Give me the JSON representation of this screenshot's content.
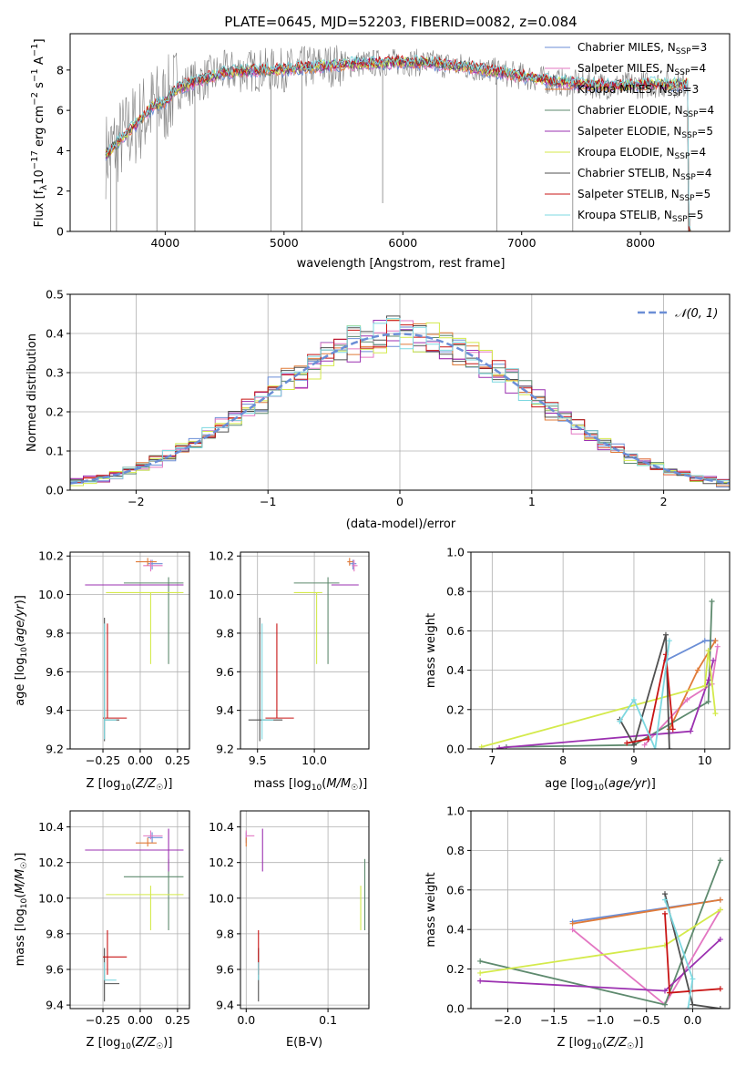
{
  "figure_title": "PLATE=0645, MJD=52203, FIBERID=0082, z=0.084",
  "colors": {
    "chabrier_miles": "#6b8ed6",
    "salpeter_miles": "#e377c2",
    "kroupa_miles": "#e07b39",
    "chabrier_elodie": "#5e8a6e",
    "salpeter_elodie": "#9b30b0",
    "kroupa_elodie": "#d4ea4b",
    "chabrier_stelib": "#505050",
    "salpeter_stelib": "#c81414",
    "kroupa_stelib": "#7dd8e0",
    "data": "#808080",
    "normal": "#6b8ed6"
  },
  "chart_data": [
    {
      "id": "spectrum",
      "type": "line",
      "xlabel": "wavelength [Angstrom, rest frame]",
      "ylabel": "Flux [f_λ 10^-17 erg cm^-2 s^-1 A^-1]",
      "xlim": [
        3200,
        8750
      ],
      "ylim": [
        0,
        9.8
      ],
      "xticks": [
        4000,
        5000,
        6000,
        7000,
        8000
      ],
      "yticks": [
        0,
        2,
        4,
        6,
        8
      ],
      "grid": false,
      "legend_position": "right",
      "legend": [
        {
          "label": "Chabrier MILES, N",
          "sub": "SSP",
          "suffix": "=3"
        },
        {
          "label": "Salpeter MILES, N",
          "sub": "SSP",
          "suffix": "=4"
        },
        {
          "label": "Kroupa MILES, N",
          "sub": "SSP",
          "suffix": "=3"
        },
        {
          "label": "Chabrier ELODIE, N",
          "sub": "SSP",
          "suffix": "=4"
        },
        {
          "label": "Salpeter ELODIE, N",
          "sub": "SSP",
          "suffix": "=5"
        },
        {
          "label": "Kroupa ELODIE, N",
          "sub": "SSP",
          "suffix": "=4"
        },
        {
          "label": "Chabrier STELIB, N",
          "sub": "SSP",
          "suffix": "=4"
        },
        {
          "label": "Salpeter STELIB, N",
          "sub": "SSP",
          "suffix": "=5"
        },
        {
          "label": "Kroupa STELIB, N",
          "sub": "SSP",
          "suffix": "=5"
        }
      ],
      "continuum": {
        "x": [
          3500,
          3600,
          3700,
          3800,
          3900,
          4000,
          4100,
          4300,
          4500,
          4800,
          5000,
          5300,
          5600,
          6000,
          6300,
          6600,
          6900,
          7100,
          7300,
          7500,
          7800,
          8100,
          8400
        ],
        "y": [
          3.8,
          4.4,
          5.0,
          5.6,
          6.2,
          6.4,
          7.1,
          7.5,
          7.9,
          8.0,
          8.0,
          8.2,
          8.3,
          8.4,
          8.3,
          8.1,
          7.8,
          7.6,
          7.4,
          7.3,
          7.2,
          7.3,
          7.3
        ]
      },
      "drops": [
        {
          "x": 3540,
          "to": 0
        },
        {
          "x": 3590,
          "to": 0
        },
        {
          "x": 3930,
          "to": 0
        },
        {
          "x": 4250,
          "to": 0
        },
        {
          "x": 4890,
          "to": 0
        },
        {
          "x": 5150,
          "to": 0
        },
        {
          "x": 5830,
          "to": 1.4
        },
        {
          "x": 6790,
          "to": 0
        },
        {
          "x": 7430,
          "to": 0
        }
      ]
    },
    {
      "id": "residuals",
      "type": "histogram",
      "xlabel": "(data-model)/error",
      "ylabel": "Normed distribution",
      "xlim": [
        -2.5,
        2.5
      ],
      "ylim": [
        0,
        0.5
      ],
      "xticks": [
        -2,
        -1,
        0,
        1,
        2
      ],
      "yticks": [
        0.0,
        0.1,
        0.2,
        0.3,
        0.4,
        0.5
      ],
      "grid": true,
      "legend_position": "top-right",
      "normal_label": "𝒩(0, 1)",
      "bin_width": 0.1,
      "bin_start": -2.5
    },
    {
      "id": "age-vs-z",
      "type": "scatter",
      "xlabel": "Z [log10(Z/Z☉)]",
      "ylabel": "age [log10(age/yr)]",
      "xlim": [
        -0.47,
        0.33
      ],
      "ylim": [
        9.2,
        10.22
      ],
      "xticks": [
        -0.25,
        0.0,
        0.25
      ],
      "xtick_labels": [
        "−0.25",
        "0.00",
        "0.25"
      ],
      "yticks": [
        9.2,
        9.4,
        9.6,
        9.8,
        10.0,
        10.2
      ],
      "grid": true
    },
    {
      "id": "age-vs-mass",
      "type": "scatter",
      "xlabel": "mass [log10(M/M☉)]",
      "ylabel": "",
      "xlim": [
        9.35,
        10.48
      ],
      "ylim": [
        9.2,
        10.22
      ],
      "xticks": [
        9.5,
        10.0
      ],
      "xtick_labels": [
        "9.5",
        "10.0"
      ],
      "yticks": [
        9.2,
        9.4,
        9.6,
        9.8,
        10.0,
        10.2
      ],
      "grid": true
    },
    {
      "id": "weight-vs-age",
      "type": "line",
      "xlabel": "age [log10(age/yr)]",
      "ylabel": "mass weight",
      "xlim": [
        6.7,
        10.35
      ],
      "ylim": [
        0,
        1.0
      ],
      "xticks": [
        7,
        8,
        9,
        10
      ],
      "yticks": [
        0.0,
        0.2,
        0.4,
        0.6,
        0.8,
        1.0
      ],
      "grid": true
    },
    {
      "id": "mass-vs-z",
      "type": "scatter",
      "xlabel": "Z [log10(Z/Z☉)]",
      "ylabel": "mass [log10(M/M☉)]",
      "xlim": [
        -0.47,
        0.33
      ],
      "ylim": [
        9.38,
        10.49
      ],
      "xticks": [
        -0.25,
        0.0,
        0.25
      ],
      "xtick_labels": [
        "−0.25",
        "0.00",
        "0.25"
      ],
      "yticks": [
        9.4,
        9.6,
        9.8,
        10.0,
        10.2,
        10.4
      ],
      "grid": true
    },
    {
      "id": "mass-vs-ebv",
      "type": "scatter",
      "xlabel": "E(B-V)",
      "ylabel": "",
      "xlim": [
        -0.007,
        0.15
      ],
      "ylim": [
        9.38,
        10.49
      ],
      "xticks": [
        0.0,
        0.1
      ],
      "xtick_labels": [
        "0.0",
        "0.1"
      ],
      "yticks": [
        9.4,
        9.6,
        9.8,
        10.0,
        10.2,
        10.4
      ],
      "grid": true
    },
    {
      "id": "weight-vs-z",
      "type": "line",
      "xlabel": "Z [log10(Z/Z☉)]",
      "ylabel": "mass weight",
      "xlim": [
        -2.4,
        0.4
      ],
      "ylim": [
        0,
        1.0
      ],
      "xticks": [
        -2.0,
        -1.5,
        -1.0,
        -0.5,
        0.0
      ],
      "xtick_labels": [
        "−2.0",
        "−1.5",
        "−1.0",
        "−0.5",
        "0.0"
      ],
      "yticks": [
        0.0,
        0.2,
        0.4,
        0.6,
        0.8,
        1.0
      ],
      "grid": true
    }
  ],
  "models": [
    {
      "key": "chabrier_miles",
      "Z": 0.08,
      "Zerr": [
        0.03,
        0.07
      ],
      "age": 10.16,
      "ageErr": [
        0.03,
        0.02
      ],
      "mass": 10.34,
      "massErr": [
        0.03,
        0.03
      ],
      "ebv": 0.0,
      "ebvErr": [
        0,
        0
      ],
      "w_age": [
        [
          9.45,
          0.45
        ],
        [
          10.0,
          0.55
        ],
        [
          10.15,
          0.55
        ]
      ],
      "w_z": [
        [
          -1.3,
          0.44
        ],
        [
          0.3,
          0.55
        ]
      ]
    },
    {
      "key": "salpeter_miles",
      "Z": 0.07,
      "Zerr": [
        0.05,
        0.08
      ],
      "age": 10.15,
      "ageErr": [
        0.03,
        0.03
      ],
      "mass": 10.35,
      "massErr": [
        0.02,
        0.03
      ],
      "ebv": 0.0,
      "ebvErr": [
        0,
        0.01
      ],
      "w_age": [
        [
          9.15,
          0.02
        ],
        [
          9.75,
          0.25
        ],
        [
          10.1,
          0.33
        ],
        [
          10.18,
          0.52
        ]
      ],
      "w_z": [
        [
          -1.3,
          0.4
        ],
        [
          -0.3,
          0.02
        ],
        [
          0.3,
          0.5
        ]
      ]
    },
    {
      "key": "kroupa_miles",
      "Z": 0.05,
      "Zerr": [
        0.08,
        0.06
      ],
      "age": 10.17,
      "ageErr": [
        0.02,
        0.02
      ],
      "mass": 10.31,
      "massErr": [
        0.02,
        0.03
      ],
      "ebv": 0.0,
      "ebvErr": [
        0,
        0
      ],
      "w_age": [
        [
          9.5,
          0.1
        ],
        [
          9.9,
          0.4
        ],
        [
          10.15,
          0.55
        ]
      ],
      "w_z": [
        [
          -1.3,
          0.43
        ],
        [
          0.3,
          0.55
        ]
      ]
    },
    {
      "key": "chabrier_elodie",
      "Z": 0.19,
      "Zerr": [
        0.3,
        0.1
      ],
      "age": 10.06,
      "ageErr": [
        0.42,
        0.03
      ],
      "mass": 10.12,
      "massErr": [
        0.3,
        0.1
      ],
      "ebv": 0.145,
      "ebvErr": [
        0,
        0
      ],
      "w_age": [
        [
          7.2,
          0.01
        ],
        [
          9.0,
          0.02
        ],
        [
          10.05,
          0.24
        ],
        [
          10.1,
          0.75
        ]
      ],
      "w_z": [
        [
          -2.3,
          0.24
        ],
        [
          -0.3,
          0.02
        ],
        [
          0.3,
          0.75
        ]
      ]
    },
    {
      "key": "salpeter_elodie",
      "Z": 0.19,
      "Zerr": [
        0.56,
        0.1
      ],
      "age": 10.05,
      "ageErr": [
        0.0,
        0.0
      ],
      "mass": 10.27,
      "massErr": [
        0.12,
        0.12
      ],
      "ebv": 0.02,
      "ebvErr": [
        0,
        0
      ],
      "w_age": [
        [
          7.1,
          0.005
        ],
        [
          9.5,
          0.08
        ],
        [
          9.8,
          0.09
        ],
        [
          10.05,
          0.35
        ],
        [
          10.12,
          0.45
        ]
      ],
      "w_z": [
        [
          -2.3,
          0.14
        ],
        [
          -0.3,
          0.09
        ],
        [
          0.3,
          0.35
        ]
      ]
    },
    {
      "key": "kroupa_elodie",
      "Z": 0.07,
      "Zerr": [
        0.3,
        0.22
      ],
      "age": 10.01,
      "ageErr": [
        0.37,
        0.0
      ],
      "mass": 10.02,
      "massErr": [
        0.2,
        0.05
      ],
      "ebv": 0.14,
      "ebvErr": [
        0,
        0
      ],
      "w_age": [
        [
          6.85,
          0.01
        ],
        [
          10.0,
          0.32
        ],
        [
          10.05,
          0.5
        ],
        [
          10.15,
          0.18
        ]
      ],
      "w_z": [
        [
          -2.3,
          0.18
        ],
        [
          -0.3,
          0.32
        ],
        [
          0.3,
          0.5
        ]
      ]
    },
    {
      "key": "chabrier_stelib",
      "Z": -0.24,
      "Zerr": [
        0.0,
        0.1
      ],
      "age": 9.35,
      "ageErr": [
        0.11,
        0.53
      ],
      "mass": 9.52,
      "massErr": [
        0.1,
        0.2
      ],
      "ebv": 0.015,
      "ebvErr": [
        0,
        0
      ],
      "w_age": [
        [
          8.8,
          0.15
        ],
        [
          9.0,
          0.02
        ],
        [
          9.45,
          0.58
        ],
        [
          9.5,
          0.0
        ]
      ],
      "w_z": [
        [
          -0.3,
          0.58
        ],
        [
          0.0,
          0.02
        ],
        [
          0.3,
          0.0
        ]
      ]
    },
    {
      "key": "salpeter_stelib",
      "Z": -0.22,
      "Zerr": [
        0.03,
        0.13
      ],
      "age": 9.36,
      "ageErr": [
        0.0,
        0.49
      ],
      "mass": 9.67,
      "massErr": [
        0.1,
        0.15
      ],
      "ebv": 0.015,
      "ebvErr": [
        0,
        0
      ],
      "w_age": [
        [
          8.9,
          0.03
        ],
        [
          9.2,
          0.05
        ],
        [
          9.45,
          0.48
        ],
        [
          9.55,
          0.1
        ]
      ],
      "w_z": [
        [
          -0.3,
          0.48
        ],
        [
          -0.25,
          0.08
        ],
        [
          0.3,
          0.1
        ]
      ]
    },
    {
      "key": "kroupa_stelib",
      "Z": -0.24,
      "Zerr": [
        0.0,
        0.08
      ],
      "age": 9.35,
      "ageErr": [
        0.1,
        0.5
      ],
      "mass": 9.54,
      "massErr": [
        0.0,
        0.1
      ],
      "ebv": 0.015,
      "ebvErr": [
        0,
        0
      ],
      "w_age": [
        [
          8.8,
          0.14
        ],
        [
          9.0,
          0.25
        ],
        [
          9.3,
          0.0
        ],
        [
          9.5,
          0.55
        ]
      ],
      "w_z": [
        [
          -0.3,
          0.55
        ],
        [
          0.0,
          0.15
        ],
        [
          -0.05,
          0.0
        ]
      ]
    }
  ]
}
